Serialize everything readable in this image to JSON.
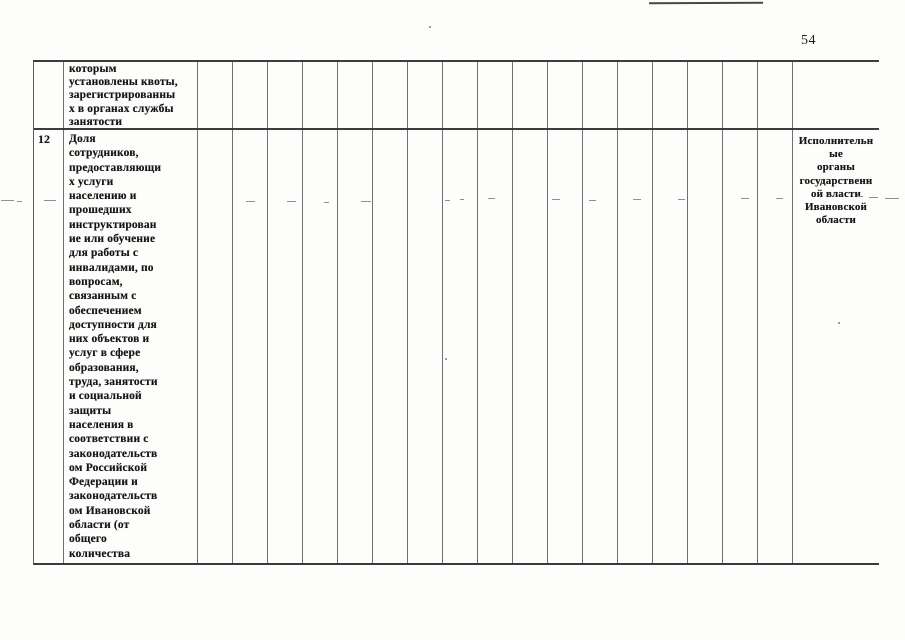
{
  "page": {
    "number": "54"
  },
  "colors": {
    "ink": "#151515",
    "table_line": "#707070"
  },
  "table": {
    "empty_column_count": 17,
    "rows": [
      {
        "num": "",
        "indicator": "которым\nустановлены квоты,\nзарегистрированны\nх в органах службы\nзанятости",
        "executor": ""
      },
      {
        "num": "12",
        "indicator": "Доля\nсотрудников,\nпредоставляющи\nх услуги\nнаселению и\nпрошедших\nинструктирован\nие или обучение\nдля работы с\nинвалидами, по\nвопросам,\nсвязанным с\nобеспечением\nдоступности для\nних объектов и\nуслуг в сфере\nобразования,\nтруда, занятости\nи социальной\nзащиты\nнаселения в\nсоответствии с\nзаконодательств\nом Российской\nФедерации и\nзаконодательств\nом Ивановской\nобласти (от\nобщего\nколичества",
        "executor": "Исполнительн\nые\nорганы\nгосударственн\nой власти\nИвановской\nобласти"
      }
    ]
  }
}
